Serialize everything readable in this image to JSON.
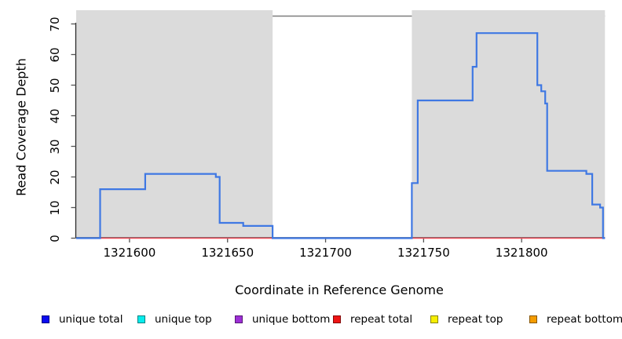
{
  "figure": {
    "background": "#ffffff"
  },
  "axes": {
    "x_label": "Coordinate in Reference Genome",
    "y_label": "Read Coverage Depth",
    "x_tick_labels": [
      "1321600",
      "1321650",
      "1321700",
      "1321750",
      "1321800"
    ],
    "y_tick_labels": [
      "0",
      "10",
      "20",
      "30",
      "40",
      "50",
      "60",
      "70"
    ]
  },
  "legend": {
    "items": [
      {
        "label": "unique total",
        "color": "#0b0bf0"
      },
      {
        "label": "unique top",
        "color": "#06ecec"
      },
      {
        "label": "unique bottom",
        "color": "#9d2fd6"
      },
      {
        "label": "repeat total",
        "color": "#ee1414"
      },
      {
        "label": "repeat top",
        "color": "#f6ee00"
      },
      {
        "label": "repeat bottom",
        "color": "#f49c00"
      }
    ]
  },
  "chart_data": {
    "type": "line",
    "subtype": "step",
    "title": "",
    "xlabel": "Coordinate in Reference Genome",
    "ylabel": "Read Coverage Depth",
    "xlim": [
      1321572.8,
      1321842.5
    ],
    "ylim": [
      0,
      72
    ],
    "x_ticks": [
      1321600,
      1321650,
      1321700,
      1321750,
      1321800
    ],
    "y_ticks": [
      0,
      10,
      20,
      30,
      40,
      50,
      60,
      70
    ],
    "grid": false,
    "legend_position": "bottom",
    "shaded_regions": [
      {
        "from": 1321572.8,
        "to": 1321673,
        "color": "#dbdbdb"
      },
      {
        "from": 1321744,
        "to": 1321842.5,
        "color": "#dbdbdb"
      }
    ],
    "series": [
      {
        "name": "unique total",
        "color": "#3f78e3",
        "line_width": 2.2,
        "steps": [
          {
            "from": 1321572.8,
            "to": 1321585,
            "value": 0
          },
          {
            "from": 1321585,
            "to": 1321608,
            "value": 16
          },
          {
            "from": 1321608,
            "to": 1321644,
            "value": 21
          },
          {
            "from": 1321644,
            "to": 1321646,
            "value": 20
          },
          {
            "from": 1321646,
            "to": 1321658,
            "value": 5
          },
          {
            "from": 1321658,
            "to": 1321673,
            "value": 4
          },
          {
            "from": 1321673,
            "to": 1321744,
            "value": 0
          },
          {
            "from": 1321744,
            "to": 1321747,
            "value": 18
          },
          {
            "from": 1321747,
            "to": 1321775,
            "value": 45
          },
          {
            "from": 1321775,
            "to": 1321777,
            "value": 56
          },
          {
            "from": 1321777,
            "to": 1321808,
            "value": 67
          },
          {
            "from": 1321808,
            "to": 1321810,
            "value": 50
          },
          {
            "from": 1321810,
            "to": 1321812,
            "value": 48
          },
          {
            "from": 1321812,
            "to": 1321813,
            "value": 44
          },
          {
            "from": 1321813,
            "to": 1321833,
            "value": 22
          },
          {
            "from": 1321833,
            "to": 1321836,
            "value": 21
          },
          {
            "from": 1321836,
            "to": 1321840,
            "value": 11
          },
          {
            "from": 1321840,
            "to": 1321841.5,
            "value": 10
          },
          {
            "from": 1321841.5,
            "to": 1321842.5,
            "value": 0
          }
        ]
      },
      {
        "name": "repeat total",
        "color": "#ee4d5a",
        "line_width": 1.6,
        "steps": [
          {
            "from": 1321572.8,
            "to": 1321842.5,
            "value": 0
          }
        ]
      }
    ]
  }
}
